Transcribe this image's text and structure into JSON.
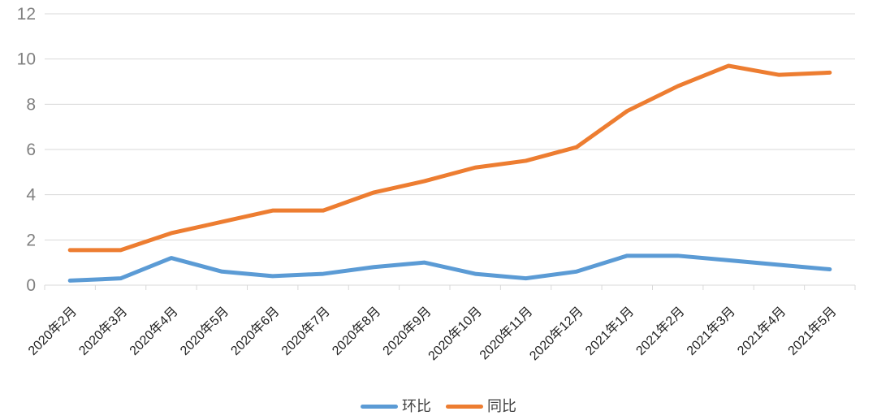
{
  "chart_data": {
    "type": "line",
    "title": "",
    "xlabel": "",
    "ylabel": "",
    "categories": [
      "2020年2月",
      "2020年3月",
      "2020年4月",
      "2020年5月",
      "2020年6月",
      "2020年7月",
      "2020年8月",
      "2020年9月",
      "2020年10月",
      "2020年11月",
      "2020年12月",
      "2021年1月",
      "2021年2月",
      "2021年3月",
      "2021年4月",
      "2021年5月"
    ],
    "series": [
      {
        "name": "环比",
        "color": "#5B9BD5",
        "values": [
          0.2,
          0.3,
          1.2,
          0.6,
          0.4,
          0.5,
          0.8,
          1.0,
          0.5,
          0.3,
          0.6,
          1.3,
          1.3,
          1.1,
          0.9,
          0.7
        ]
      },
      {
        "name": "同比",
        "color": "#ED7D31",
        "values": [
          1.55,
          1.55,
          2.3,
          2.8,
          3.3,
          3.3,
          4.1,
          4.6,
          5.2,
          5.5,
          6.1,
          7.7,
          8.8,
          9.7,
          9.3,
          9.4
        ]
      }
    ],
    "ylim": [
      0,
      12
    ],
    "yticks": [
      0,
      2,
      4,
      6,
      8,
      10,
      12
    ],
    "grid": "horizontal",
    "legend_position": "bottom",
    "line_width": 5
  },
  "colors": {
    "background": "#FFFFFF",
    "grid": "#D9D9D9",
    "axis": "#D9D9D9",
    "y_label": "#808080",
    "x_label": "#1F1F1F",
    "legend_text": "#404040"
  }
}
